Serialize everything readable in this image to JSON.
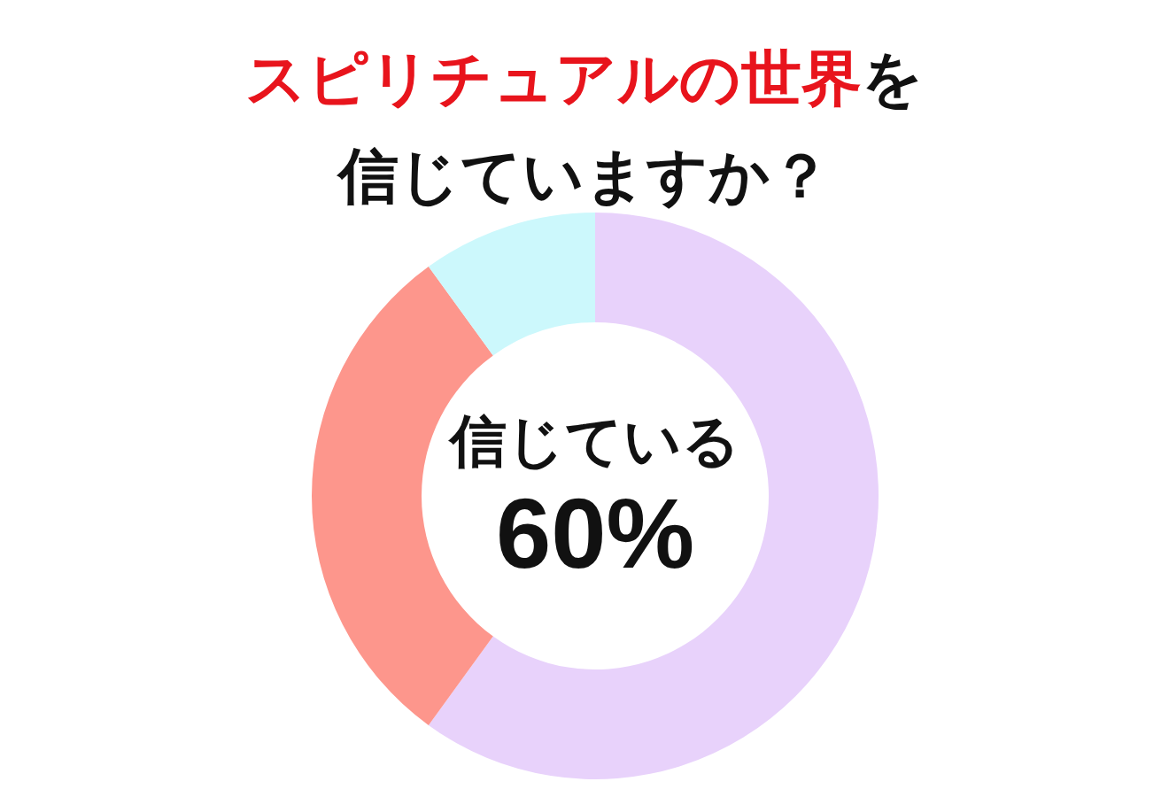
{
  "chart_data": {
    "type": "donut",
    "title": "スピリチュアルの世界を信じていますか？",
    "categories": [
      "信じている",
      null,
      null
    ],
    "values": [
      60,
      30,
      10
    ],
    "colors": [
      "#e8d2fb",
      "#fd968c",
      "#ccf8fc"
    ],
    "value_labels": [
      "60%",
      null,
      null
    ]
  }
}
